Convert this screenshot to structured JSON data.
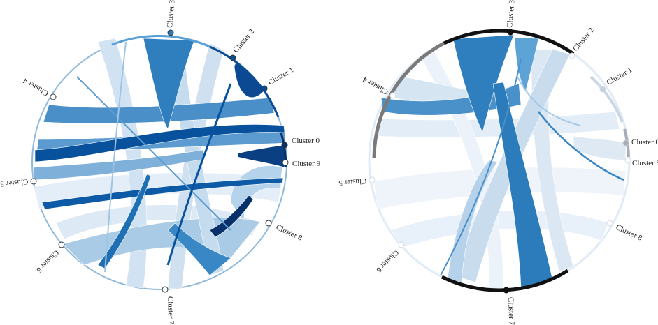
{
  "diagrams": [
    {
      "id": "left",
      "clusters": [
        {
          "id": 0,
          "label": "Cluster 0",
          "color": "#08306b",
          "marker": "#08306b"
        },
        {
          "id": 9,
          "label": "Cluster 9",
          "color": "#08306b",
          "marker": "#ffffff"
        },
        {
          "id": 8,
          "label": "Cluster 8",
          "color": "#a6cbe6",
          "marker": "#ffffff"
        },
        {
          "id": 7,
          "label": "Cluster 7",
          "color": "#d7e6f4",
          "marker": "#ffffff"
        },
        {
          "id": 6,
          "label": "Cluster 6",
          "color": "#a8cce6",
          "marker": "#ffffff"
        },
        {
          "id": 5,
          "label": "Cluster 5",
          "color": "#9dc4e3",
          "marker": "#ffffff"
        },
        {
          "id": 4,
          "label": "Cluster 4",
          "color": "#2b7bba",
          "marker": "#ffffff"
        },
        {
          "id": 3,
          "label": "Cluster 3",
          "color": "#3a85c2",
          "marker": "#2c7cbb"
        },
        {
          "id": 2,
          "label": "Cluster 2",
          "color": "#0d4d93",
          "marker": "#0d4d93"
        },
        {
          "id": 1,
          "label": "Cluster 1",
          "color": "#0b4a93",
          "marker": "#0b4a93"
        }
      ]
    },
    {
      "id": "right",
      "clusters": [
        {
          "id": 0,
          "label": "Cluster 0",
          "color": "#9ea3aa",
          "marker": "#a8adb5"
        },
        {
          "id": 9,
          "label": "Cluster 9",
          "color": "#dfe6ef",
          "marker": "#ffffff"
        },
        {
          "id": 8,
          "label": "Cluster 8",
          "color": "#e8f0f8",
          "marker": "#ffffff"
        },
        {
          "id": 7,
          "label": "Cluster 7",
          "color": "#111111",
          "marker": "#111111"
        },
        {
          "id": 6,
          "label": "Cluster 6",
          "color": "#e6eef7",
          "marker": "#ffffff"
        },
        {
          "id": 5,
          "label": "Cluster 5",
          "color": "#e6eef7",
          "marker": "#ffffff"
        },
        {
          "id": 4,
          "label": "Cluster 4",
          "color": "#7a7a7a",
          "marker": "#ffffff"
        },
        {
          "id": 3,
          "label": "Cluster 3",
          "color": "#111111",
          "marker": "#111111"
        },
        {
          "id": 2,
          "label": "Cluster 2",
          "color": "#d6e3f0",
          "marker": "#ffffff"
        },
        {
          "id": 1,
          "label": "Cluster 1",
          "color": "#c9d7e6",
          "marker": "#c3cfdd"
        }
      ]
    }
  ]
}
